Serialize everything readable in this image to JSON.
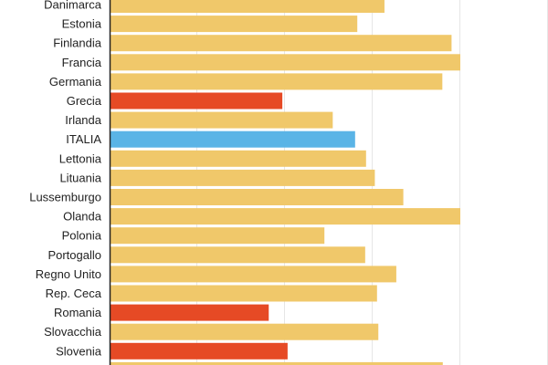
{
  "chart_data": {
    "type": "bar",
    "orientation": "horizontal",
    "title": "",
    "xlabel": "",
    "ylabel": "",
    "xlim": [
      0,
      100
    ],
    "grid": true,
    "categories": [
      "Danimarca",
      "Estonia",
      "Finlandia",
      "Francia",
      "Germania",
      "Grecia",
      "Irlanda",
      "ITALIA",
      "Lettonia",
      "Lituania",
      "Lussemburgo",
      "Olanda",
      "Polonia",
      "Portogallo",
      "Regno Unito",
      "Rep. Ceca",
      "Romania",
      "Slovacchia",
      "Slovenia"
    ],
    "values": [
      62.7,
      56.5,
      78.0,
      80.0,
      75.9,
      39.4,
      50.9,
      56.0,
      58.5,
      60.5,
      67.0,
      80.0,
      49.0,
      58.3,
      65.4,
      61.0,
      36.3,
      61.3,
      40.6
    ],
    "partial_next_value": 76.0,
    "highlight": {
      "ITALIA": "#5ab4e6",
      "Grecia": "#e64a25",
      "Romania": "#e64a25",
      "Slovenia": "#e64a25"
    },
    "colors": {
      "default_bar": "#f0c86a",
      "highlight_low": "#e64a25",
      "highlight_italy": "#5ab4e6",
      "grid": "#e6e6e6",
      "axis": "#222222"
    }
  }
}
